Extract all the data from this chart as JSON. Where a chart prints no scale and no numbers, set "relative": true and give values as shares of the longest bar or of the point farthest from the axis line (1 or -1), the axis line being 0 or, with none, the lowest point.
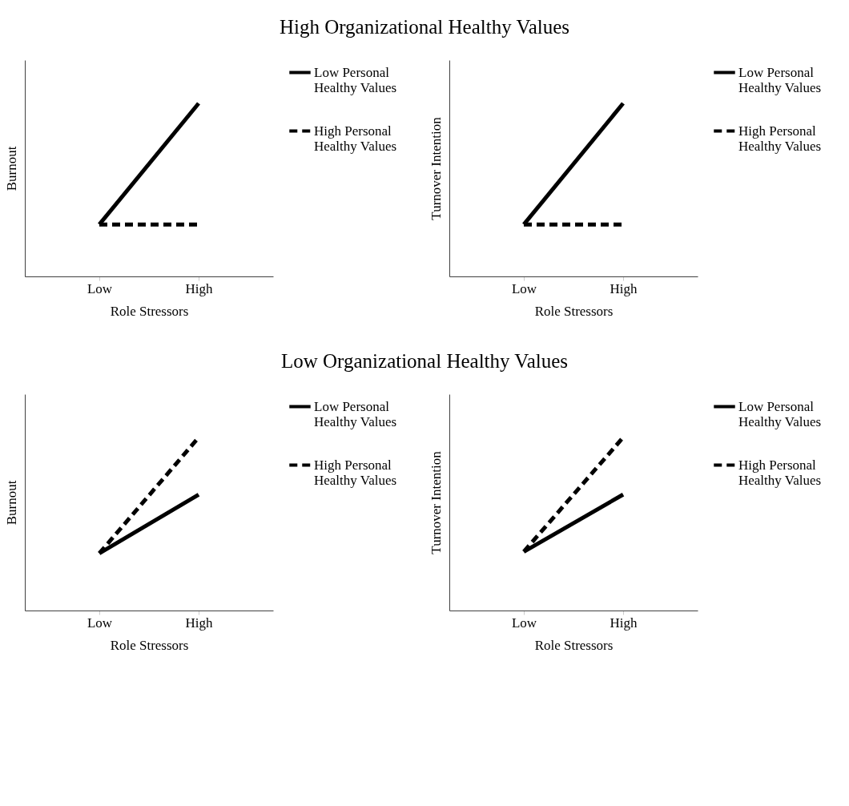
{
  "chart_data": [
    {
      "type": "line",
      "title": "High Organizational Healthy Values",
      "xlabel": "Role Stressors",
      "ylabel": "Burnout",
      "categories": [
        "Low",
        "High"
      ],
      "relative": true,
      "legend": "right",
      "grid": false,
      "series": [
        {
          "name": "Low Personal Healthy Values",
          "color": "#000000",
          "line_style": "solid",
          "values": [
            0.3,
            1.0
          ]
        },
        {
          "name": "High Personal Healthy Values",
          "color": "#000000",
          "line_style": "dashed",
          "values": [
            0.3,
            0.3
          ]
        }
      ]
    },
    {
      "type": "line",
      "xlabel": "Role Stressors",
      "ylabel": "Turnover Intention",
      "categories": [
        "Low",
        "High"
      ],
      "relative": true,
      "legend": "right",
      "grid": false,
      "series": [
        {
          "name": "Low Personal Healthy Values",
          "color": "#000000",
          "line_style": "solid",
          "values": [
            0.3,
            1.0
          ]
        },
        {
          "name": "High Personal Healthy Values",
          "color": "#000000",
          "line_style": "dashed",
          "values": [
            0.3,
            0.3
          ]
        }
      ]
    },
    {
      "type": "line",
      "title": "Low Organizational Healthy Values",
      "xlabel": "Role Stressors",
      "ylabel": "Burnout",
      "categories": [
        "Low",
        "High"
      ],
      "relative": true,
      "legend": "right",
      "grid": false,
      "series": [
        {
          "name": "Low Personal Healthy Values",
          "color": "#000000",
          "line_style": "solid",
          "values": [
            0.33,
            0.67
          ]
        },
        {
          "name": "High Personal Healthy Values",
          "color": "#000000",
          "line_style": "dashed",
          "values": [
            0.33,
            1.0
          ]
        }
      ]
    },
    {
      "type": "line",
      "xlabel": "Role Stressors",
      "ylabel": "Turnover Intention",
      "categories": [
        "Low",
        "High"
      ],
      "relative": true,
      "legend": "right",
      "grid": false,
      "series": [
        {
          "name": "Low Personal Healthy Values",
          "color": "#000000",
          "line_style": "solid",
          "values": [
            0.34,
            0.67
          ]
        },
        {
          "name": "High Personal Healthy Values",
          "color": "#000000",
          "line_style": "dashed",
          "values": [
            0.34,
            1.0
          ]
        }
      ]
    }
  ]
}
